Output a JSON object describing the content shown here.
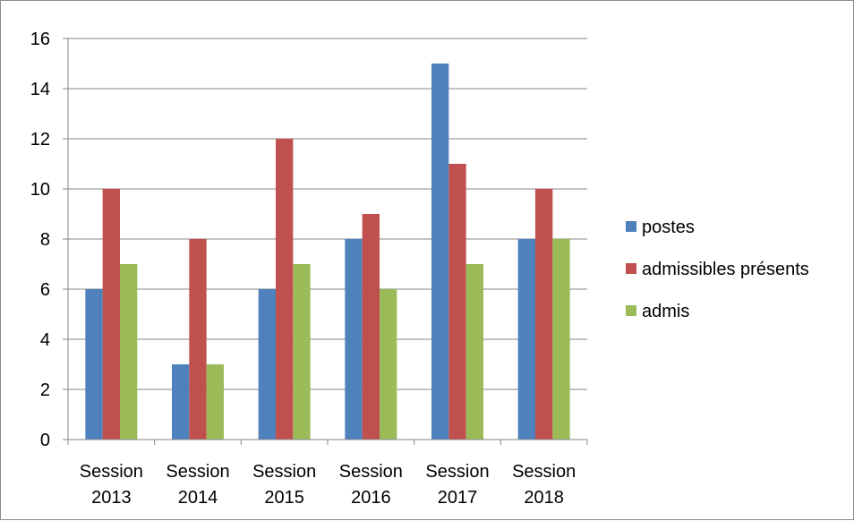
{
  "chart_data": {
    "type": "bar",
    "title": "",
    "xlabel": "",
    "ylabel": "",
    "categories": [
      [
        "Session",
        "2013"
      ],
      [
        "Session",
        "2014"
      ],
      [
        "Session",
        "2015"
      ],
      [
        "Session",
        "2016"
      ],
      [
        "Session",
        "2017"
      ],
      [
        "Session",
        "2018"
      ]
    ],
    "series": [
      {
        "name": "postes",
        "color": "#4f81bd",
        "values": [
          6,
          3,
          6,
          8,
          15,
          8
        ]
      },
      {
        "name": "admissibles présents",
        "color": "#c0504d",
        "values": [
          10,
          8,
          12,
          9,
          11,
          10
        ]
      },
      {
        "name": "admis",
        "color": "#9bbb59",
        "values": [
          7,
          3,
          7,
          6,
          7,
          8
        ]
      }
    ],
    "ylim": [
      0,
      16
    ],
    "yticks": [
      "0",
      "2",
      "4",
      "6",
      "8",
      "10",
      "12",
      "14",
      "16"
    ],
    "grid": true,
    "legend_position": "right"
  }
}
